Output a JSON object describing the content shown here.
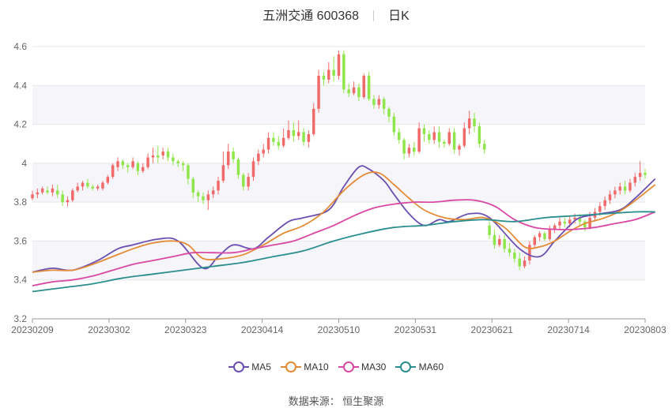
{
  "header": {
    "name": "五洲交通 600368",
    "period": "日K"
  },
  "source": "数据来源： 恒生聚源",
  "chart_data": {
    "type": "candlestick",
    "ylim": [
      3.2,
      4.6
    ],
    "yticks": [
      "3.2",
      "3.4",
      "3.6",
      "3.8",
      "4",
      "4.2",
      "4.4",
      "4.6"
    ],
    "xticks": [
      "20230209",
      "20230302",
      "20230323",
      "20230414",
      "20230510",
      "20230531",
      "20230621",
      "20230714",
      "20230803"
    ],
    "colors": {
      "up": "#f16a6a",
      "down": "#8ee64a"
    },
    "candles": [
      [
        3.82,
        3.84,
        3.81,
        3.86
      ],
      [
        3.84,
        3.85,
        3.82,
        3.87
      ],
      [
        3.85,
        3.87,
        3.84,
        3.88
      ],
      [
        3.86,
        3.85,
        3.84,
        3.88
      ],
      [
        3.85,
        3.87,
        3.83,
        3.89
      ],
      [
        3.86,
        3.84,
        3.82,
        3.89
      ],
      [
        3.84,
        3.8,
        3.78,
        3.86
      ],
      [
        3.8,
        3.81,
        3.78,
        3.83
      ],
      [
        3.81,
        3.86,
        3.8,
        3.87
      ],
      [
        3.86,
        3.88,
        3.85,
        3.9
      ],
      [
        3.88,
        3.9,
        3.86,
        3.91
      ],
      [
        3.9,
        3.88,
        3.87,
        3.92
      ],
      [
        3.88,
        3.87,
        3.86,
        3.89
      ],
      [
        3.87,
        3.88,
        3.86,
        3.89
      ],
      [
        3.87,
        3.9,
        3.86,
        3.91
      ],
      [
        3.9,
        3.93,
        3.89,
        3.94
      ],
      [
        3.93,
        3.99,
        3.92,
        4.0
      ],
      [
        3.98,
        4.01,
        3.96,
        4.03
      ],
      [
        4.01,
        3.99,
        3.97,
        4.02
      ],
      [
        3.99,
        3.98,
        3.95,
        4.0
      ],
      [
        3.98,
        4.01,
        3.97,
        4.03
      ],
      [
        4.0,
        3.96,
        3.94,
        4.01
      ],
      [
        3.96,
        3.98,
        3.95,
        4.0
      ],
      [
        3.98,
        4.03,
        3.97,
        4.05
      ],
      [
        4.03,
        4.04,
        4.0,
        4.08
      ],
      [
        4.04,
        4.03,
        4.0,
        4.09
      ],
      [
        4.04,
        4.06,
        4.02,
        4.08
      ],
      [
        4.06,
        4.03,
        4.01,
        4.08
      ],
      [
        4.03,
        4.01,
        3.99,
        4.05
      ],
      [
        4.01,
        4.0,
        3.98,
        4.02
      ],
      [
        4.0,
        3.99,
        3.96,
        4.01
      ],
      [
        3.99,
        3.92,
        3.89,
        4.0
      ],
      [
        3.92,
        3.85,
        3.82,
        3.93
      ],
      [
        3.85,
        3.83,
        3.8,
        3.86
      ],
      [
        3.83,
        3.81,
        3.79,
        3.85
      ],
      [
        3.81,
        3.84,
        3.76,
        3.86
      ],
      [
        3.84,
        3.86,
        3.82,
        3.88
      ],
      [
        3.86,
        3.91,
        3.84,
        3.93
      ],
      [
        3.91,
        3.99,
        3.9,
        4.06
      ],
      [
        3.99,
        4.06,
        3.97,
        4.1
      ],
      [
        4.06,
        4.02,
        4.0,
        4.08
      ],
      [
        4.02,
        3.94,
        3.92,
        4.03
      ],
      [
        3.94,
        3.88,
        3.86,
        3.95
      ],
      [
        3.88,
        3.93,
        3.86,
        3.95
      ],
      [
        3.93,
        4.01,
        3.91,
        4.03
      ],
      [
        4.01,
        4.05,
        3.99,
        4.07
      ],
      [
        4.05,
        4.07,
        4.03,
        4.1
      ],
      [
        4.07,
        4.13,
        4.05,
        4.16
      ],
      [
        4.13,
        4.11,
        4.09,
        4.16
      ],
      [
        4.11,
        4.09,
        4.07,
        4.14
      ],
      [
        4.09,
        4.13,
        4.08,
        4.18
      ],
      [
        4.13,
        4.17,
        4.12,
        4.22
      ],
      [
        4.17,
        4.14,
        4.11,
        4.21
      ],
      [
        4.14,
        4.16,
        4.12,
        4.22
      ],
      [
        4.16,
        4.11,
        4.09,
        4.18
      ],
      [
        4.11,
        4.15,
        4.08,
        4.17
      ],
      [
        4.15,
        4.28,
        4.14,
        4.31
      ],
      [
        4.28,
        4.45,
        4.26,
        4.48
      ],
      [
        4.45,
        4.43,
        4.4,
        4.47
      ],
      [
        4.43,
        4.48,
        4.41,
        4.52
      ],
      [
        4.48,
        4.45,
        4.42,
        4.55
      ],
      [
        4.45,
        4.56,
        4.43,
        4.58
      ],
      [
        4.56,
        4.38,
        4.36,
        4.58
      ],
      [
        4.38,
        4.36,
        4.34,
        4.41
      ],
      [
        4.36,
        4.39,
        4.35,
        4.42
      ],
      [
        4.39,
        4.34,
        4.32,
        4.41
      ],
      [
        4.34,
        4.45,
        4.33,
        4.46
      ],
      [
        4.45,
        4.33,
        4.32,
        4.47
      ],
      [
        4.33,
        4.3,
        4.28,
        4.35
      ],
      [
        4.3,
        4.33,
        4.28,
        4.35
      ],
      [
        4.33,
        4.28,
        4.25,
        4.34
      ],
      [
        4.28,
        4.24,
        4.21,
        4.29
      ],
      [
        4.24,
        4.16,
        4.14,
        4.26
      ],
      [
        4.16,
        4.12,
        4.1,
        4.18
      ],
      [
        4.12,
        4.05,
        4.02,
        4.13
      ],
      [
        4.05,
        4.08,
        4.03,
        4.1
      ],
      [
        4.08,
        4.06,
        4.04,
        4.11
      ],
      [
        4.06,
        4.18,
        4.05,
        4.21
      ],
      [
        4.18,
        4.15,
        4.11,
        4.2
      ],
      [
        4.15,
        4.12,
        4.1,
        4.17
      ],
      [
        4.12,
        4.16,
        4.1,
        4.19
      ],
      [
        4.16,
        4.11,
        4.08,
        4.19
      ],
      [
        4.11,
        4.1,
        4.08,
        4.12
      ],
      [
        4.1,
        4.16,
        4.09,
        4.18
      ],
      [
        4.16,
        4.07,
        4.05,
        4.18
      ],
      [
        4.07,
        4.09,
        4.04,
        4.1
      ],
      [
        4.09,
        4.18,
        4.08,
        4.21
      ],
      [
        4.18,
        4.23,
        4.15,
        4.27
      ],
      [
        4.23,
        4.19,
        4.16,
        4.26
      ],
      [
        4.19,
        4.1,
        4.08,
        4.21
      ],
      [
        4.1,
        4.07,
        4.05,
        4.12
      ],
      [
        3.68,
        3.63,
        3.61,
        3.7
      ],
      [
        3.63,
        3.58,
        3.56,
        3.66
      ],
      [
        3.58,
        3.61,
        3.57,
        3.63
      ],
      [
        3.61,
        3.56,
        3.54,
        3.63
      ],
      [
        3.56,
        3.54,
        3.52,
        3.59
      ],
      [
        3.54,
        3.51,
        3.49,
        3.56
      ],
      [
        3.51,
        3.47,
        3.45,
        3.54
      ],
      [
        3.47,
        3.5,
        3.46,
        3.52
      ],
      [
        3.5,
        3.58,
        3.48,
        3.6
      ],
      [
        3.58,
        3.62,
        3.56,
        3.63
      ],
      [
        3.62,
        3.64,
        3.6,
        3.65
      ],
      [
        3.64,
        3.61,
        3.6,
        3.65
      ],
      [
        3.61,
        3.66,
        3.6,
        3.68
      ],
      [
        3.66,
        3.68,
        3.64,
        3.69
      ],
      [
        3.68,
        3.7,
        3.66,
        3.72
      ],
      [
        3.7,
        3.69,
        3.67,
        3.72
      ],
      [
        3.69,
        3.71,
        3.67,
        3.73
      ],
      [
        3.71,
        3.72,
        3.69,
        3.74
      ],
      [
        3.72,
        3.7,
        3.68,
        3.74
      ],
      [
        3.7,
        3.67,
        3.65,
        3.71
      ],
      [
        3.67,
        3.72,
        3.66,
        3.75
      ],
      [
        3.72,
        3.75,
        3.7,
        3.77
      ],
      [
        3.75,
        3.78,
        3.73,
        3.8
      ],
      [
        3.78,
        3.81,
        3.76,
        3.83
      ],
      [
        3.81,
        3.84,
        3.79,
        3.86
      ],
      [
        3.84,
        3.86,
        3.82,
        3.88
      ],
      [
        3.86,
        3.88,
        3.84,
        3.9
      ],
      [
        3.88,
        3.86,
        3.84,
        3.91
      ],
      [
        3.86,
        3.9,
        3.85,
        3.92
      ],
      [
        3.9,
        3.93,
        3.88,
        3.95
      ],
      [
        3.93,
        3.95,
        3.91,
        4.01
      ],
      [
        3.95,
        3.94,
        3.92,
        3.97
      ]
    ],
    "series": [
      {
        "name": "MA5",
        "color": "#6a4fb0",
        "x": [
          0,
          4,
          8,
          13,
          17,
          20,
          25,
          29,
          34,
          37,
          40,
          44,
          47,
          51,
          54,
          59,
          62,
          65,
          67,
          70,
          72,
          75,
          78,
          81,
          83,
          87,
          91,
          97,
          101,
          104,
          107,
          109,
          113,
          117,
          120,
          124
        ],
        "y": [
          3.44,
          3.46,
          3.45,
          3.5,
          3.56,
          3.58,
          3.61,
          3.6,
          3.46,
          3.52,
          3.58,
          3.56,
          3.62,
          3.7,
          3.72,
          3.76,
          3.88,
          3.98,
          3.97,
          3.91,
          3.84,
          3.74,
          3.68,
          3.71,
          3.7,
          3.74,
          3.72,
          3.56,
          3.52,
          3.6,
          3.68,
          3.72,
          3.74,
          3.76,
          3.82,
          3.92
        ]
      },
      {
        "name": "MA10",
        "color": "#e48b37",
        "x": [
          0,
          4,
          8,
          12,
          16,
          20,
          24,
          28,
          31,
          34,
          38,
          42,
          46,
          50,
          54,
          58,
          62,
          66,
          69,
          72,
          75,
          78,
          82,
          86,
          90,
          94,
          98,
          101,
          104,
          107,
          110,
          114,
          118,
          124
        ],
        "y": [
          3.44,
          3.45,
          3.45,
          3.48,
          3.52,
          3.56,
          3.59,
          3.6,
          3.58,
          3.51,
          3.51,
          3.53,
          3.58,
          3.64,
          3.68,
          3.75,
          3.86,
          3.94,
          3.95,
          3.89,
          3.82,
          3.76,
          3.72,
          3.71,
          3.72,
          3.67,
          3.57,
          3.57,
          3.6,
          3.65,
          3.69,
          3.72,
          3.77,
          3.89
        ]
      },
      {
        "name": "MA30",
        "color": "#d948a4",
        "x": [
          0,
          4,
          8,
          12,
          16,
          20,
          24,
          28,
          32,
          36,
          40,
          44,
          48,
          52,
          56,
          60,
          64,
          68,
          72,
          76,
          80,
          84,
          88,
          92,
          96,
          100,
          104,
          108,
          112,
          116,
          120,
          124
        ],
        "y": [
          3.37,
          3.39,
          3.4,
          3.42,
          3.45,
          3.48,
          3.5,
          3.52,
          3.54,
          3.54,
          3.54,
          3.56,
          3.58,
          3.6,
          3.64,
          3.68,
          3.73,
          3.77,
          3.79,
          3.8,
          3.8,
          3.81,
          3.81,
          3.78,
          3.71,
          3.67,
          3.66,
          3.66,
          3.67,
          3.69,
          3.71,
          3.75
        ]
      },
      {
        "name": "MA60",
        "color": "#2b8e8e",
        "x": [
          0,
          6,
          12,
          18,
          24,
          30,
          36,
          42,
          48,
          54,
          60,
          66,
          72,
          78,
          84,
          90,
          96,
          102,
          108,
          114,
          120,
          124
        ],
        "y": [
          3.34,
          3.36,
          3.38,
          3.41,
          3.43,
          3.45,
          3.47,
          3.49,
          3.52,
          3.55,
          3.6,
          3.64,
          3.67,
          3.68,
          3.7,
          3.71,
          3.7,
          3.72,
          3.73,
          3.74,
          3.75,
          3.75
        ]
      }
    ]
  }
}
